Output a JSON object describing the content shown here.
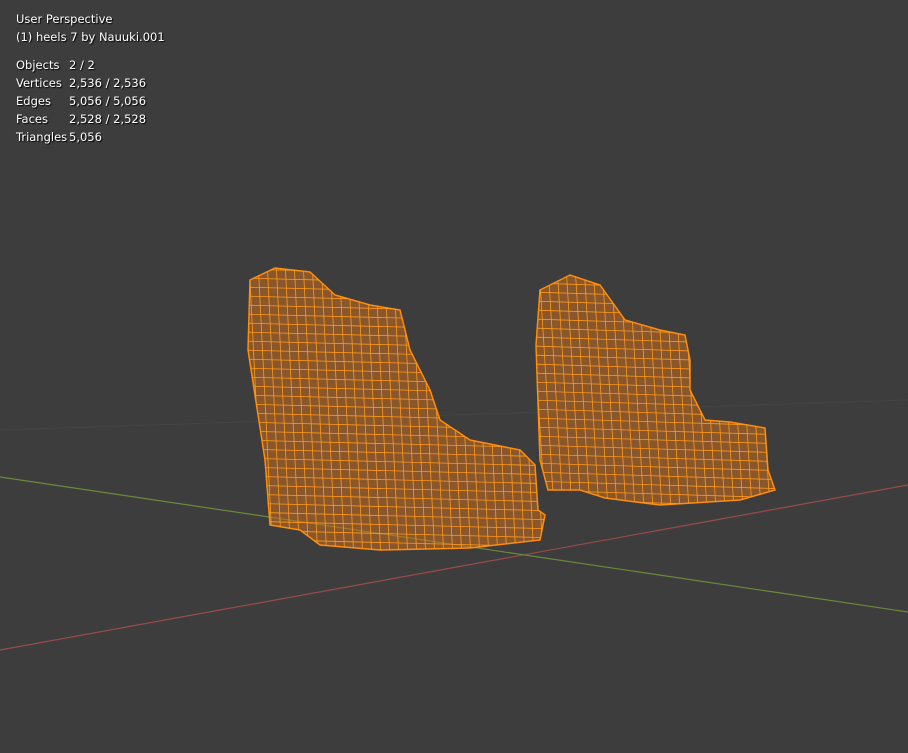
{
  "viewport": {
    "view_name": "User Perspective",
    "active_object": "(1) heels 7 by Nauuki.001",
    "stats": [
      {
        "label": "Objects",
        "value": "2 / 2"
      },
      {
        "label": "Vertices",
        "value": "2,536 / 2,536"
      },
      {
        "label": "Edges",
        "value": "5,056 / 5,056"
      },
      {
        "label": "Faces",
        "value": "2,528 / 2,528"
      },
      {
        "label": "Triangles",
        "value": "5,056"
      }
    ]
  },
  "colors": {
    "background": "#3d3d3d",
    "x_axis": "#9a4a4a",
    "y_axis": "#6b8a3a",
    "selection_wire": "#ff8c0a"
  }
}
